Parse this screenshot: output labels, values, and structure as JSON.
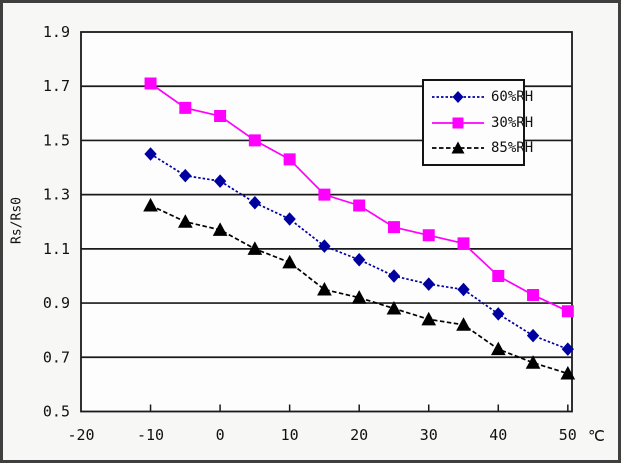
{
  "figure": {
    "background": "#f7f7f6",
    "border_color": "#3f3f3f"
  },
  "chart_data": {
    "type": "line",
    "title": "",
    "xlabel": "℃",
    "ylabel": "Rs/Rs0",
    "x": [
      -10,
      -5,
      0,
      5,
      10,
      15,
      20,
      25,
      30,
      35,
      40,
      45,
      50
    ],
    "xlim": [
      -20,
      50.6
    ],
    "ylim": [
      0.5,
      1.9
    ],
    "x_ticks": [
      -20,
      -10,
      0,
      10,
      20,
      30,
      40,
      50
    ],
    "x_tick_labels": [
      "-20",
      "-10",
      "0",
      "10",
      "20",
      "30",
      "40",
      "50"
    ],
    "y_ticks": [
      0.5,
      0.7,
      0.9,
      1.1,
      1.3,
      1.5,
      1.7,
      1.9
    ],
    "y_tick_labels": [
      "0.5",
      "0.7",
      "0.9",
      "1.1",
      "1.3",
      "1.5",
      "1.7",
      "1.9"
    ],
    "grid": "horizontal",
    "legend_position": "inside-upper-right",
    "axis_color": "#1a1a1a",
    "series": [
      {
        "name": "60%RH",
        "color": "#0000A0",
        "marker": "diamond",
        "line_dash": "2.5 2",
        "values": [
          1.45,
          1.37,
          1.35,
          1.27,
          1.21,
          1.11,
          1.06,
          1.0,
          0.97,
          0.95,
          0.86,
          0.78,
          0.73
        ]
      },
      {
        "name": "30%RH",
        "color": "#FF00FF",
        "marker": "square",
        "line_dash": "",
        "values": [
          1.71,
          1.62,
          1.59,
          1.5,
          1.43,
          1.3,
          1.26,
          1.18,
          1.15,
          1.12,
          1.0,
          0.93,
          0.87
        ]
      },
      {
        "name": "85%RH",
        "color": "#000000",
        "marker": "triangle",
        "line_dash": "4.5 2.5",
        "values": [
          1.26,
          1.2,
          1.17,
          1.1,
          1.05,
          0.95,
          0.92,
          0.88,
          0.84,
          0.82,
          0.73,
          0.68,
          0.64
        ]
      }
    ]
  }
}
